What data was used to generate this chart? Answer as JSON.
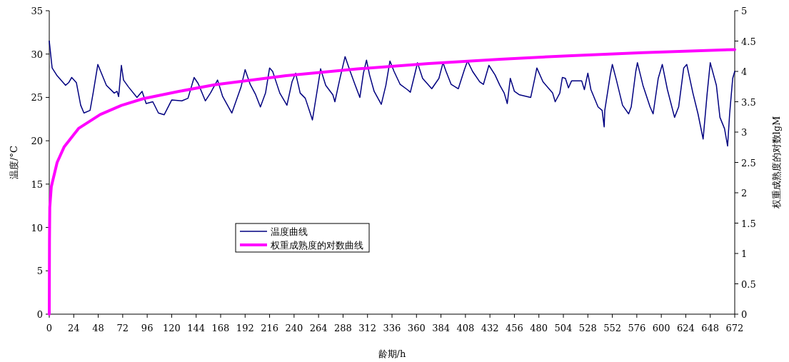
{
  "chart_data": {
    "type": "line",
    "xlabel": "龄期/h",
    "ylabel": "温度/°C",
    "y2label": "权重成熟度的对数lgM",
    "xlim": [
      0,
      672
    ],
    "xticks": [
      0,
      24,
      48,
      72,
      96,
      120,
      144,
      168,
      192,
      216,
      240,
      264,
      288,
      312,
      336,
      360,
      384,
      408,
      432,
      456,
      480,
      504,
      528,
      552,
      576,
      600,
      624,
      648,
      672
    ],
    "ylim": [
      0,
      35
    ],
    "yticks": [
      0,
      5,
      10,
      15,
      20,
      25,
      30,
      35
    ],
    "y2lim": [
      0,
      5
    ],
    "y2ticks": [
      0,
      0.5,
      1,
      1.5,
      2,
      2.5,
      3,
      3.5,
      4,
      4.5,
      5
    ],
    "grid": false,
    "legend": "bottom left",
    "marker": "none",
    "line_style": "solid",
    "series": [
      {
        "name": "温度曲线",
        "color": "#000080",
        "axis": "y",
        "x": [
          0,
          2.8,
          7.7,
          16,
          19,
          22,
          26.6,
          30.8,
          34,
          40,
          43,
          47.6,
          50.4,
          56,
          63.7,
          66.5,
          68,
          70.7,
          72.8,
          77.7,
          86,
          91,
          95,
          101.5,
          107,
          112.7,
          120,
          130,
          136,
          142,
          146,
          153,
          158,
          165,
          170,
          179,
          188,
          192,
          197,
          202,
          207,
          212,
          216,
          219,
          226,
          233,
          238,
          241.5,
          246,
          251,
          258,
          264,
          266,
          271,
          278,
          280,
          285,
          290,
          295,
          300,
          304.5,
          308,
          311,
          314,
          318.5,
          325.5,
          330,
          334,
          338,
          344,
          351,
          354,
          359,
          361,
          366,
          375,
          382,
          386,
          389,
          394,
          401,
          407,
          410,
          415,
          422,
          425.6,
          431,
          437,
          441.7,
          446,
          449,
          452,
          456,
          461,
          472,
          476,
          478,
          484,
          493.5,
          496,
          500.5,
          503,
          506,
          509,
          512,
          522,
          524.6,
          528,
          531,
          538,
          542,
          544,
          544.6,
          550,
          552,
          556,
          562,
          568,
          570.5,
          575,
          576.6,
          582,
          589,
          592,
          597,
          601,
          606,
          613,
          617,
          622,
          625,
          631,
          636,
          641,
          645,
          648,
          654,
          657.5,
          662,
          665,
          667,
          670,
          672
        ],
        "values": [
          31.5,
          28.4,
          27.5,
          26.4,
          26.7,
          27.3,
          26.7,
          24.1,
          23.2,
          23.5,
          25.5,
          28.8,
          28.0,
          26.4,
          25.5,
          25.7,
          25.1,
          28.7,
          27.0,
          26.2,
          25.0,
          25.7,
          24.3,
          24.5,
          23.2,
          23.0,
          24.7,
          24.6,
          24.9,
          27.3,
          26.6,
          24.6,
          25.5,
          27.0,
          25.1,
          23.2,
          26.2,
          28.2,
          26.5,
          25.4,
          23.9,
          25.5,
          28.4,
          28.0,
          25.5,
          24.1,
          26.8,
          27.8,
          25.5,
          24.9,
          22.4,
          26.8,
          28.3,
          26.4,
          25.3,
          24.5,
          27.2,
          29.7,
          28.0,
          26.4,
          25.0,
          27.8,
          29.3,
          27.6,
          25.7,
          24.2,
          26.4,
          29.2,
          28.0,
          26.5,
          25.9,
          25.6,
          28.0,
          29.0,
          27.2,
          26.0,
          27.2,
          29.0,
          28.0,
          26.5,
          26.0,
          28.2,
          29.2,
          28.0,
          26.8,
          26.5,
          28.7,
          27.6,
          26.4,
          25.5,
          24.3,
          27.2,
          25.7,
          25.3,
          25.0,
          27.2,
          28.4,
          26.8,
          25.5,
          24.5,
          25.5,
          27.3,
          27.2,
          26.1,
          26.9,
          26.9,
          25.9,
          27.8,
          25.9,
          23.9,
          23.5,
          21.6,
          23.5,
          27.6,
          28.8,
          27.0,
          24.1,
          23.1,
          23.9,
          28.0,
          29.0,
          26.4,
          23.9,
          23.1,
          27.2,
          28.8,
          25.9,
          22.7,
          23.9,
          28.4,
          28.8,
          25.5,
          23.1,
          20.2,
          25.5,
          29.0,
          26.4,
          22.7,
          21.4,
          19.4,
          23.1,
          27.2,
          28.0
        ]
      },
      {
        "name": "权重成熟度的对数曲线",
        "color": "#ff00ff",
        "axis": "y2",
        "x": [
          0,
          0.2,
          0.5,
          2,
          7.7,
          14.7,
          28.7,
          50,
          70.7,
          92,
          127,
          162,
          232,
          302,
          372,
          442,
          512,
          582,
          672
        ],
        "values": [
          0,
          1.2,
          1.76,
          2.1,
          2.5,
          2.76,
          3.06,
          3.29,
          3.44,
          3.55,
          3.67,
          3.78,
          3.93,
          4.04,
          4.13,
          4.2,
          4.26,
          4.31,
          4.36
        ]
      }
    ]
  }
}
